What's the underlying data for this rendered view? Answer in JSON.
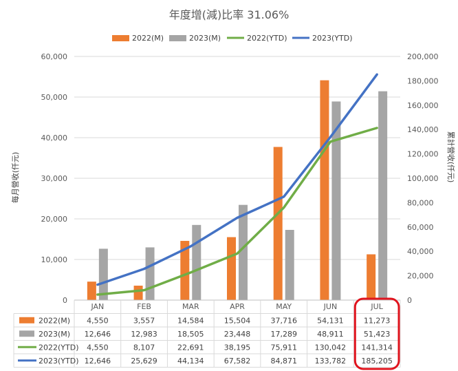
{
  "chart_data": {
    "type": "bar+line",
    "title": "年度增(減)比率 31.06%",
    "categories": [
      "JAN",
      "FEB",
      "MAR",
      "APR",
      "MAY",
      "JUN",
      "JUL"
    ],
    "ylabel_left": "每月營收(仟元)",
    "ylabel_right": "累計營收(仟元)",
    "ylim_left": [
      0,
      60000
    ],
    "ylim_right": [
      0,
      200000
    ],
    "yticks_left": [
      "0",
      "10,000",
      "20,000",
      "30,000",
      "40,000",
      "50,000",
      "60,000"
    ],
    "yticks_right": [
      "0",
      "20,000",
      "40,000",
      "60,000",
      "80,000",
      "100,000",
      "120,000",
      "140,000",
      "160,000",
      "180,000",
      "200,000"
    ],
    "legend_position": "top",
    "series": [
      {
        "name": "2022(M)",
        "kind": "bar",
        "axis": "left",
        "color": "#ed7d31",
        "values": [
          4550,
          3557,
          14584,
          15504,
          37716,
          54131,
          11273
        ],
        "labels": [
          "4,550",
          "3,557",
          "14,584",
          "15,504",
          "37,716",
          "54,131",
          "11,273"
        ]
      },
      {
        "name": "2023(M)",
        "kind": "bar",
        "axis": "left",
        "color": "#a5a5a5",
        "values": [
          12646,
          12983,
          18505,
          23448,
          17289,
          48911,
          51423
        ],
        "labels": [
          "12,646",
          "12,983",
          "18,505",
          "23,448",
          "17,289",
          "48,911",
          "51,423"
        ]
      },
      {
        "name": "2022(YTD)",
        "kind": "line",
        "axis": "right",
        "color": "#70ad47",
        "values": [
          4550,
          8107,
          22691,
          38195,
          75911,
          130042,
          141314
        ],
        "labels": [
          "4,550",
          "8,107",
          "22,691",
          "38,195",
          "75,911",
          "130,042",
          "141,314"
        ]
      },
      {
        "name": "2023(YTD)",
        "kind": "line",
        "axis": "right",
        "color": "#4472c4",
        "values": [
          12646,
          25629,
          44134,
          67582,
          84871,
          133782,
          185205
        ],
        "labels": [
          "12,646",
          "25,629",
          "44,134",
          "67,582",
          "84,871",
          "133,782",
          "185,205"
        ]
      }
    ],
    "highlight_category": "JUL",
    "highlight_color": "#e0141e",
    "grid": true
  }
}
